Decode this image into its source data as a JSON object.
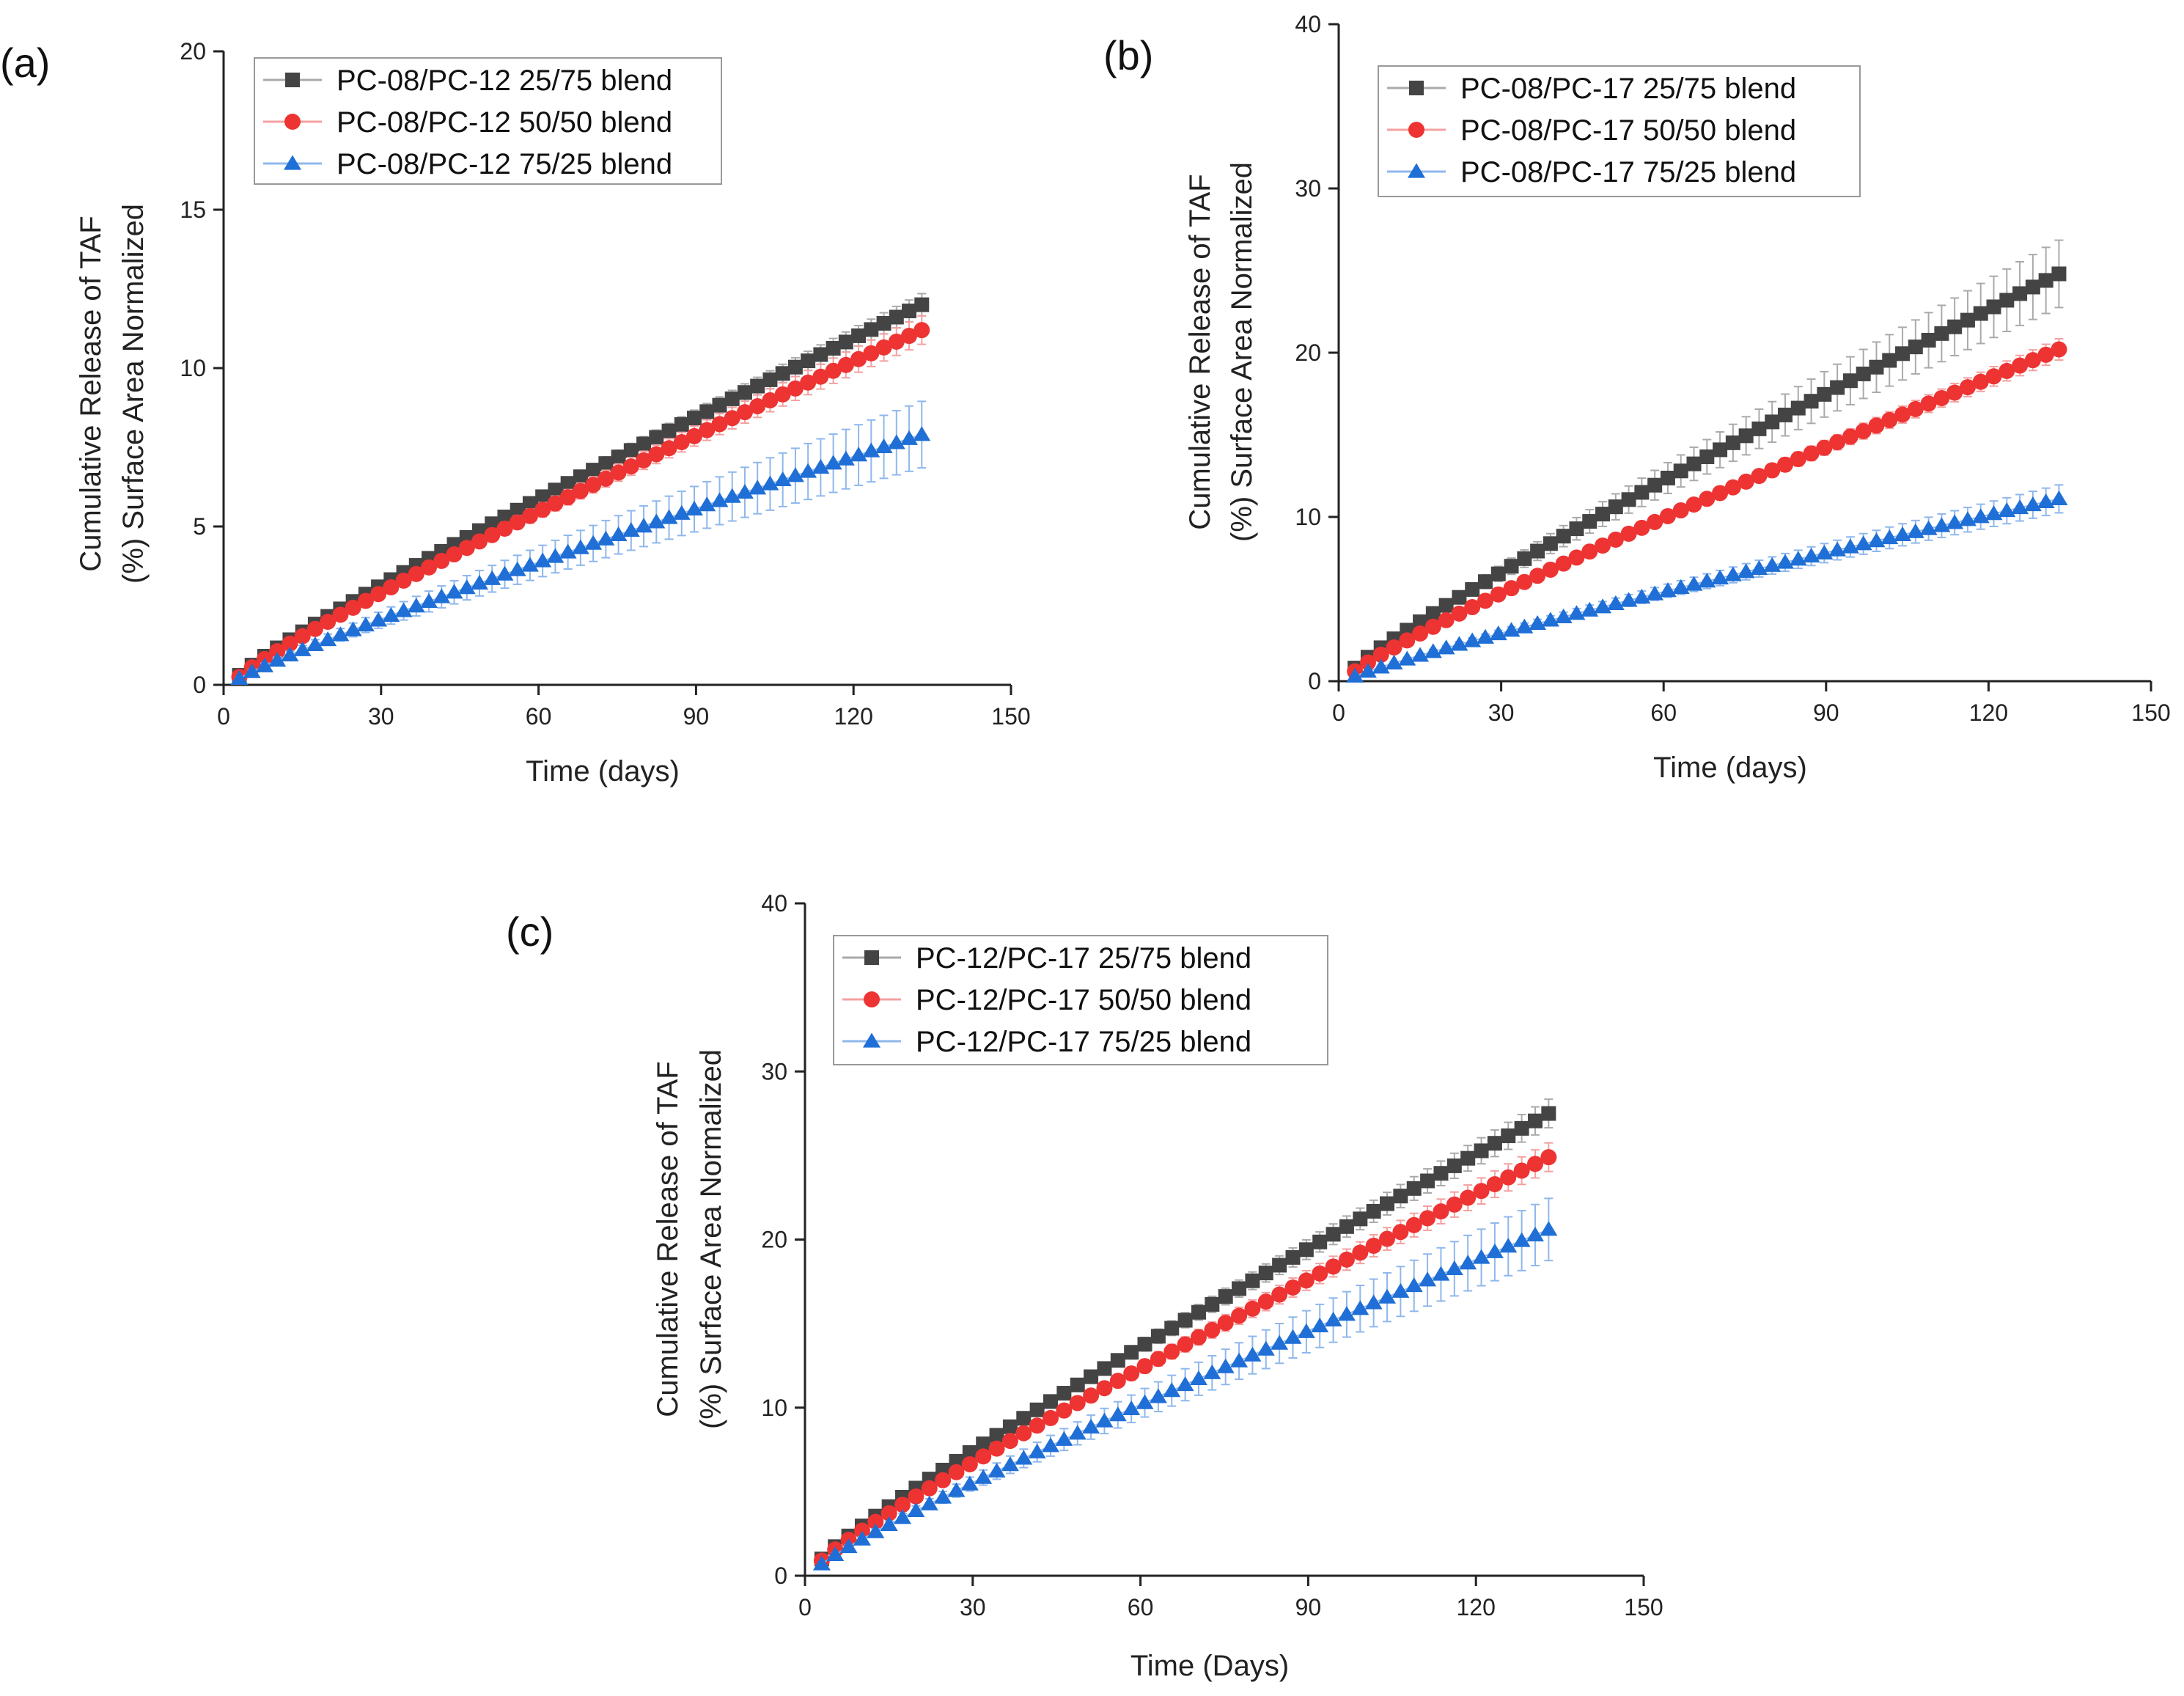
{
  "chart_data": [
    {
      "type": "scatter",
      "panel_label": "(a)",
      "xlabel": "Time (days)",
      "ylabel_line1": "Cumulative Release of TAF",
      "ylabel_line2": "(%) Surface Area Normalized",
      "xlim": [
        0,
        150
      ],
      "ylim": [
        0,
        20
      ],
      "xticks": [
        0,
        30,
        60,
        90,
        120,
        150
      ],
      "yticks": [
        0,
        5,
        10,
        15,
        20
      ],
      "legend_position": "top-left",
      "series": [
        {
          "name": "PC-08/PC-12 25/75 blend",
          "marker": "square",
          "color": "#444444",
          "errcolor": "#aaaaaa",
          "x_start": 3,
          "x_end": 133,
          "y_start": 0.3,
          "y_end": 12.0,
          "err_end": 0.3
        },
        {
          "name": "PC-08/PC-12 50/50 blend",
          "marker": "circle",
          "color": "#ee3333",
          "errcolor": "#f4a0a0",
          "x_start": 3,
          "x_end": 133,
          "y_start": 0.25,
          "y_end": 11.2,
          "err_end": 0.4
        },
        {
          "name": "PC-08/PC-12 75/25 blend",
          "marker": "triangle",
          "color": "#1f6fd6",
          "errcolor": "#8fb7ec",
          "x_start": 3,
          "x_end": 133,
          "y_start": 0.2,
          "y_end": 7.9,
          "err_end": 1.0
        }
      ]
    },
    {
      "type": "scatter",
      "panel_label": "(b)",
      "xlabel": "Time (days)",
      "ylabel_line1": "Cumulative Release of TAF",
      "ylabel_line2": "(%) Surface Area Normalized",
      "xlim": [
        0,
        150
      ],
      "ylim": [
        0,
        40
      ],
      "xticks": [
        0,
        30,
        60,
        90,
        120,
        150
      ],
      "yticks": [
        0,
        10,
        20,
        30,
        40
      ],
      "legend_position": "top-left",
      "series": [
        {
          "name": "PC-08/PC-17 25/75 blend",
          "marker": "square",
          "color": "#444444",
          "errcolor": "#aaaaaa",
          "x_start": 3,
          "x_end": 133,
          "y_start": 0.8,
          "y_end": 24.8,
          "err_end": 2.0
        },
        {
          "name": "PC-08/PC-17 50/50 blend",
          "marker": "circle",
          "color": "#ee3333",
          "errcolor": "#f4a0a0",
          "x_start": 3,
          "x_end": 133,
          "y_start": 0.6,
          "y_end": 20.2,
          "err_end": 0.6
        },
        {
          "name": "PC-08/PC-17 75/25 blend",
          "marker": "triangle",
          "color": "#1f6fd6",
          "errcolor": "#8fb7ec",
          "x_start": 3,
          "x_end": 133,
          "y_start": 0.3,
          "y_end": 11.1,
          "err_end": 0.8
        }
      ]
    },
    {
      "type": "scatter",
      "panel_label": "(c)",
      "xlabel": "Time (Days)",
      "ylabel_line1": "Cumulative Release of TAF",
      "ylabel_line2": "(%) Surface Area Normalized",
      "xlim": [
        0,
        150
      ],
      "ylim": [
        0,
        40
      ],
      "xticks": [
        0,
        30,
        60,
        90,
        120,
        150
      ],
      "yticks": [
        0,
        10,
        20,
        30,
        40
      ],
      "legend_position": "top-left",
      "series": [
        {
          "name": "PC-12/PC-17 25/75 blend",
          "marker": "square",
          "color": "#444444",
          "errcolor": "#aaaaaa",
          "x_start": 3,
          "x_end": 133,
          "y_start": 1.0,
          "y_end": 27.5,
          "err_end": 0.8
        },
        {
          "name": "PC-12/PC-17 50/50 blend",
          "marker": "circle",
          "color": "#ee3333",
          "errcolor": "#f4a0a0",
          "x_start": 3,
          "x_end": 133,
          "y_start": 0.9,
          "y_end": 24.9,
          "err_end": 0.8
        },
        {
          "name": "PC-12/PC-17 75/25 blend",
          "marker": "triangle",
          "color": "#1f6fd6",
          "errcolor": "#8fb7ec",
          "x_start": 3,
          "x_end": 133,
          "y_start": 0.7,
          "y_end": 20.6,
          "err_end": 1.8
        }
      ]
    }
  ]
}
